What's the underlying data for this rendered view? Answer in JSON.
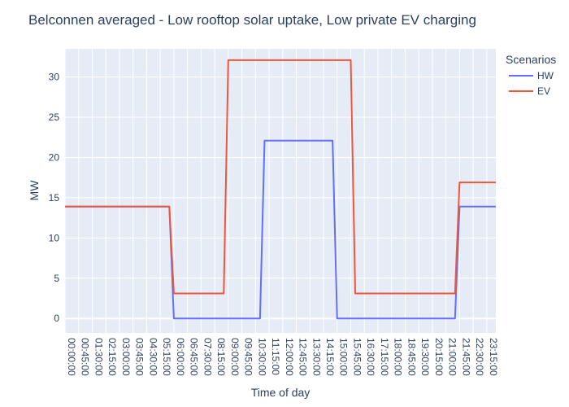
{
  "chart_data": {
    "type": "line",
    "title": "Belconnen averaged - Low rooftop solar uptake, Low private EV charging",
    "xlabel": "Time of day",
    "ylabel": "MW",
    "legend_title": "Scenarios",
    "legend_position": "top-right",
    "grid": true,
    "ylim": [
      -1.8,
      33.5
    ],
    "yticks": [
      0,
      5,
      10,
      15,
      20,
      25,
      30
    ],
    "x_tick_labels": [
      "00:00:00",
      "00:45:00",
      "01:30:00",
      "02:15:00",
      "03:00:00",
      "03:45:00",
      "04:30:00",
      "05:15:00",
      "06:00:00",
      "06:45:00",
      "07:30:00",
      "08:15:00",
      "09:00:00",
      "09:45:00",
      "10:30:00",
      "11:15:00",
      "12:00:00",
      "12:45:00",
      "13:30:00",
      "14:15:00",
      "15:00:00",
      "15:45:00",
      "16:30:00",
      "17:15:00",
      "18:00:00",
      "18:45:00",
      "19:30:00",
      "20:15:00",
      "21:00:00",
      "21:45:00",
      "22:30:00",
      "23:15:00"
    ],
    "x_range": [
      "00:00:00",
      "23:45:00"
    ],
    "series": [
      {
        "name": "HW",
        "color": "#636efa",
        "points": [
          [
            "00:00:00",
            13.9
          ],
          [
            "05:45:00",
            13.9
          ],
          [
            "06:00:00",
            0
          ],
          [
            "10:45:00",
            0
          ],
          [
            "11:00:00",
            22.1
          ],
          [
            "14:45:00",
            22.1
          ],
          [
            "15:00:00",
            0
          ],
          [
            "21:30:00",
            0
          ],
          [
            "21:45:00",
            13.9
          ],
          [
            "23:45:00",
            13.9
          ]
        ]
      },
      {
        "name": "EV",
        "color": "#ef553b",
        "points": [
          [
            "00:00:00",
            13.9
          ],
          [
            "05:45:00",
            13.9
          ],
          [
            "06:00:00",
            3.1
          ],
          [
            "08:45:00",
            3.1
          ],
          [
            "09:00:00",
            32.1
          ],
          [
            "15:45:00",
            32.1
          ],
          [
            "16:00:00",
            3.1
          ],
          [
            "21:30:00",
            3.1
          ],
          [
            "21:45:00",
            16.9
          ],
          [
            "23:45:00",
            16.9
          ]
        ]
      }
    ]
  }
}
